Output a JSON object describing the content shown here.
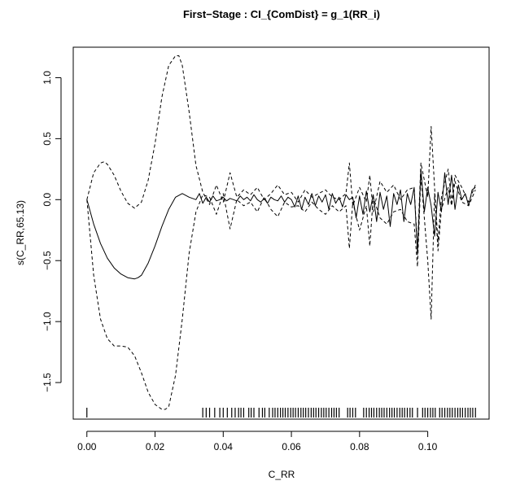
{
  "chart_data": {
    "type": "line",
    "title": "First−Stage : CI_{ComDist} = g_1(RR_i)",
    "xlabel": "C_RR",
    "ylabel": "s(C_RR,65.13)",
    "xlim": [
      -0.004,
      0.118
    ],
    "ylim": [
      -1.8,
      1.25
    ],
    "x_ticks": [
      0.0,
      0.02,
      0.04,
      0.06,
      0.08,
      0.1
    ],
    "x_tick_labels": [
      "0.00",
      "0.02",
      "0.04",
      "0.06",
      "0.08",
      "0.10"
    ],
    "y_ticks": [
      -1.5,
      -1.0,
      -0.5,
      0.0,
      0.5,
      1.0
    ],
    "y_tick_labels": [
      "−1.5",
      "−1.0",
      "−0.5",
      "0.0",
      "0.5",
      "1.0"
    ],
    "grid": false,
    "series": [
      {
        "style": "solid",
        "x": [
          0,
          0.002,
          0.004,
          0.006,
          0.008,
          0.01,
          0.012,
          0.014,
          0.015,
          0.016,
          0.018,
          0.02,
          0.022,
          0.024,
          0.026,
          0.028,
          0.03,
          0.032,
          0.033,
          0.034,
          0.035,
          0.036,
          0.037,
          0.038,
          0.039,
          0.04,
          0.041,
          0.042,
          0.043,
          0.044,
          0.045,
          0.046,
          0.047,
          0.048,
          0.049,
          0.05,
          0.051,
          0.052,
          0.053,
          0.054,
          0.055,
          0.056,
          0.057,
          0.058,
          0.059,
          0.06,
          0.061,
          0.062,
          0.063,
          0.064,
          0.065,
          0.066,
          0.067,
          0.068,
          0.069,
          0.07,
          0.071,
          0.072,
          0.073,
          0.074,
          0.075,
          0.076,
          0.077,
          0.078,
          0.079,
          0.08,
          0.081,
          0.082,
          0.083,
          0.084,
          0.085,
          0.086,
          0.087,
          0.088,
          0.089,
          0.09,
          0.091,
          0.092,
          0.093,
          0.094,
          0.095,
          0.096,
          0.097,
          0.098,
          0.099,
          0.1,
          0.101,
          0.102,
          0.103,
          0.104,
          0.105,
          0.106,
          0.107,
          0.108,
          0.109,
          0.11,
          0.111,
          0.112,
          0.113,
          0.114
        ],
        "y": [
          0,
          -0.2,
          -0.36,
          -0.48,
          -0.56,
          -0.61,
          -0.64,
          -0.65,
          -0.64,
          -0.62,
          -0.52,
          -0.38,
          -0.22,
          -0.08,
          0.02,
          0.05,
          0.02,
          0.0,
          0.05,
          -0.03,
          0.02,
          -0.02,
          0.03,
          -0.01,
          0.0,
          0.02,
          -0.01,
          0.01,
          0.0,
          -0.01,
          0.03,
          0.0,
          0.02,
          -0.01,
          0.04,
          0.0,
          -0.02,
          0.01,
          -0.03,
          0.02,
          0.0,
          -0.01,
          0.03,
          -0.02,
          0.02,
          0.0,
          -0.06,
          0.03,
          -0.08,
          0.02,
          -0.04,
          0.05,
          -0.05,
          0.03,
          -0.02,
          0.04,
          -0.08,
          0.05,
          -0.03,
          0.02,
          -0.06,
          0.04,
          0.0,
          0.02,
          -0.15,
          0.03,
          -0.12,
          0.07,
          -0.1,
          0.04,
          -0.18,
          0.06,
          -0.08,
          0.03,
          -0.22,
          0.05,
          -0.04,
          0.08,
          -0.18,
          0.05,
          -0.04,
          0.1,
          -0.45,
          0.25,
          -0.1,
          0.1,
          -0.05,
          -0.3,
          0.06,
          -0.1,
          0.22,
          -0.04,
          0.2,
          -0.08,
          0.12,
          0.0,
          0.05,
          -0.05,
          0.08,
          0.1
        ]
      },
      {
        "style": "dashed",
        "x": [
          0,
          0.002,
          0.004,
          0.005,
          0.006,
          0.008,
          0.01,
          0.012,
          0.014,
          0.016,
          0.018,
          0.02,
          0.022,
          0.024,
          0.026,
          0.027,
          0.028,
          0.03,
          0.032,
          0.034,
          0.036,
          0.038,
          0.04,
          0.042,
          0.044,
          0.046,
          0.048,
          0.05,
          0.052,
          0.054,
          0.056,
          0.058,
          0.06,
          0.062,
          0.064,
          0.066,
          0.068,
          0.07,
          0.072,
          0.074,
          0.076,
          0.077,
          0.078,
          0.08,
          0.082,
          0.083,
          0.084,
          0.086,
          0.088,
          0.09,
          0.092,
          0.094,
          0.096,
          0.097,
          0.098,
          0.1,
          0.101,
          0.102,
          0.103,
          0.104,
          0.106,
          0.107,
          0.108,
          0.11,
          0.112,
          0.114
        ],
        "y": [
          0,
          0.22,
          0.3,
          0.31,
          0.29,
          0.2,
          0.07,
          -0.03,
          -0.07,
          -0.02,
          0.16,
          0.46,
          0.84,
          1.1,
          1.18,
          1.18,
          1.1,
          0.72,
          0.28,
          0.06,
          -0.04,
          0.12,
          -0.02,
          0.22,
          0.02,
          0.08,
          0.04,
          0.1,
          0.0,
          0.05,
          0.12,
          0.04,
          0.06,
          -0.02,
          0.08,
          0.02,
          0.05,
          0.08,
          0.02,
          0.0,
          0.05,
          0.3,
          -0.05,
          0.1,
          -0.02,
          0.2,
          -0.1,
          0.15,
          0.06,
          0.12,
          0.0,
          0.08,
          0.1,
          -0.4,
          0.3,
          0.02,
          0.6,
          0.1,
          -0.35,
          0.02,
          0.25,
          -0.02,
          0.2,
          0.1,
          -0.02,
          0.12
        ]
      },
      {
        "style": "dashed",
        "x": [
          0,
          0.002,
          0.004,
          0.006,
          0.008,
          0.01,
          0.012,
          0.014,
          0.016,
          0.018,
          0.02,
          0.022,
          0.023,
          0.024,
          0.026,
          0.028,
          0.03,
          0.032,
          0.034,
          0.036,
          0.038,
          0.04,
          0.042,
          0.044,
          0.046,
          0.048,
          0.05,
          0.052,
          0.054,
          0.056,
          0.058,
          0.06,
          0.062,
          0.064,
          0.066,
          0.068,
          0.07,
          0.072,
          0.074,
          0.076,
          0.077,
          0.078,
          0.08,
          0.082,
          0.083,
          0.084,
          0.086,
          0.088,
          0.09,
          0.092,
          0.094,
          0.096,
          0.097,
          0.098,
          0.1,
          0.101,
          0.102,
          0.103,
          0.104,
          0.106,
          0.107,
          0.108,
          0.11,
          0.112,
          0.114
        ],
        "y": [
          0,
          -0.62,
          -0.98,
          -1.14,
          -1.2,
          -1.2,
          -1.21,
          -1.28,
          -1.42,
          -1.58,
          -1.68,
          -1.72,
          -1.72,
          -1.7,
          -1.44,
          -0.98,
          -0.44,
          -0.1,
          0.04,
          0.02,
          -0.12,
          0.05,
          -0.24,
          0.0,
          -0.05,
          -0.02,
          -0.1,
          0.02,
          -0.08,
          -0.14,
          -0.02,
          -0.06,
          -0.05,
          -0.1,
          -0.02,
          -0.08,
          -0.12,
          -0.05,
          -0.1,
          -0.05,
          -0.4,
          -0.02,
          -0.25,
          -0.05,
          -0.38,
          0.02,
          -0.15,
          -0.2,
          -0.1,
          -0.08,
          -0.18,
          -0.2,
          -0.55,
          0.2,
          -0.5,
          -0.98,
          0.05,
          -0.42,
          -0.08,
          0.1,
          -0.05,
          0.15,
          -0.02,
          -0.05,
          0.08
        ]
      }
    ],
    "rug_x": [
      0.0,
      0.034,
      0.035,
      0.036,
      0.0375,
      0.039,
      0.04,
      0.0412,
      0.0425,
      0.0435,
      0.0445,
      0.0452,
      0.046,
      0.0475,
      0.0482,
      0.049,
      0.0505,
      0.0515,
      0.0522,
      0.0535,
      0.0545,
      0.0552,
      0.056,
      0.0568,
      0.0575,
      0.0582,
      0.059,
      0.0598,
      0.0605,
      0.0612,
      0.062,
      0.0628,
      0.0635,
      0.0642,
      0.065,
      0.0658,
      0.0665,
      0.0672,
      0.068,
      0.0688,
      0.0695,
      0.0702,
      0.071,
      0.0718,
      0.0725,
      0.0732,
      0.074,
      0.0765,
      0.0772,
      0.078,
      0.0788,
      0.0812,
      0.082,
      0.0828,
      0.0835,
      0.0842,
      0.085,
      0.0858,
      0.0865,
      0.0872,
      0.088,
      0.0888,
      0.0895,
      0.0902,
      0.091,
      0.0918,
      0.0925,
      0.0932,
      0.094,
      0.0948,
      0.0955,
      0.097,
      0.0985,
      0.0992,
      0.1,
      0.1008,
      0.1015,
      0.1022,
      0.1035,
      0.1042,
      0.105,
      0.1058,
      0.1065,
      0.1072,
      0.108,
      0.1088,
      0.1095,
      0.1102,
      0.111,
      0.1118,
      0.1125,
      0.1132,
      0.114
    ]
  }
}
